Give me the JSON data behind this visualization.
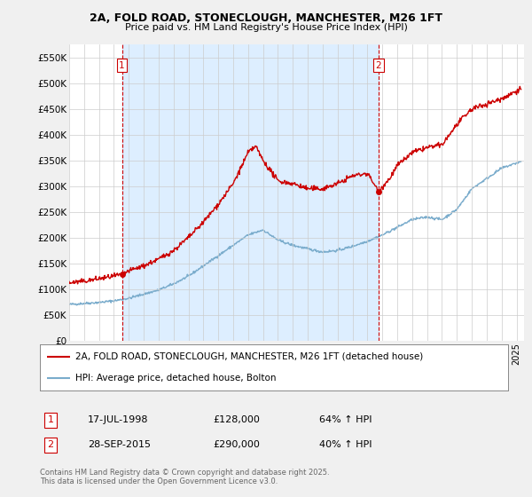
{
  "title1": "2A, FOLD ROAD, STONECLOUGH, MANCHESTER, M26 1FT",
  "title2": "Price paid vs. HM Land Registry's House Price Index (HPI)",
  "ylabel_ticks": [
    "£0",
    "£50K",
    "£100K",
    "£150K",
    "£200K",
    "£250K",
    "£300K",
    "£350K",
    "£400K",
    "£450K",
    "£500K",
    "£550K"
  ],
  "ytick_values": [
    0,
    50000,
    100000,
    150000,
    200000,
    250000,
    300000,
    350000,
    400000,
    450000,
    500000,
    550000
  ],
  "ylim": [
    0,
    575000
  ],
  "xlim_start": 1995.0,
  "xlim_end": 2025.5,
  "sale1_date": 1998.54,
  "sale1_price": 128000,
  "sale2_date": 2015.74,
  "sale2_price": 290000,
  "legend_line1": "2A, FOLD ROAD, STONECLOUGH, MANCHESTER, M26 1FT (detached house)",
  "legend_line2": "HPI: Average price, detached house, Bolton",
  "annotation1_date": "17-JUL-1998",
  "annotation1_price": "£128,000",
  "annotation1_hpi": "64% ↑ HPI",
  "annotation2_date": "28-SEP-2015",
  "annotation2_price": "£290,000",
  "annotation2_hpi": "40% ↑ HPI",
  "footer": "Contains HM Land Registry data © Crown copyright and database right 2025.\nThis data is licensed under the Open Government Licence v3.0.",
  "line_color_red": "#cc0000",
  "line_color_blue": "#7aaccc",
  "shade_color": "#ddeeff",
  "background_color": "#f0f0f0",
  "plot_background": "#ffffff",
  "grid_color": "#cccccc"
}
